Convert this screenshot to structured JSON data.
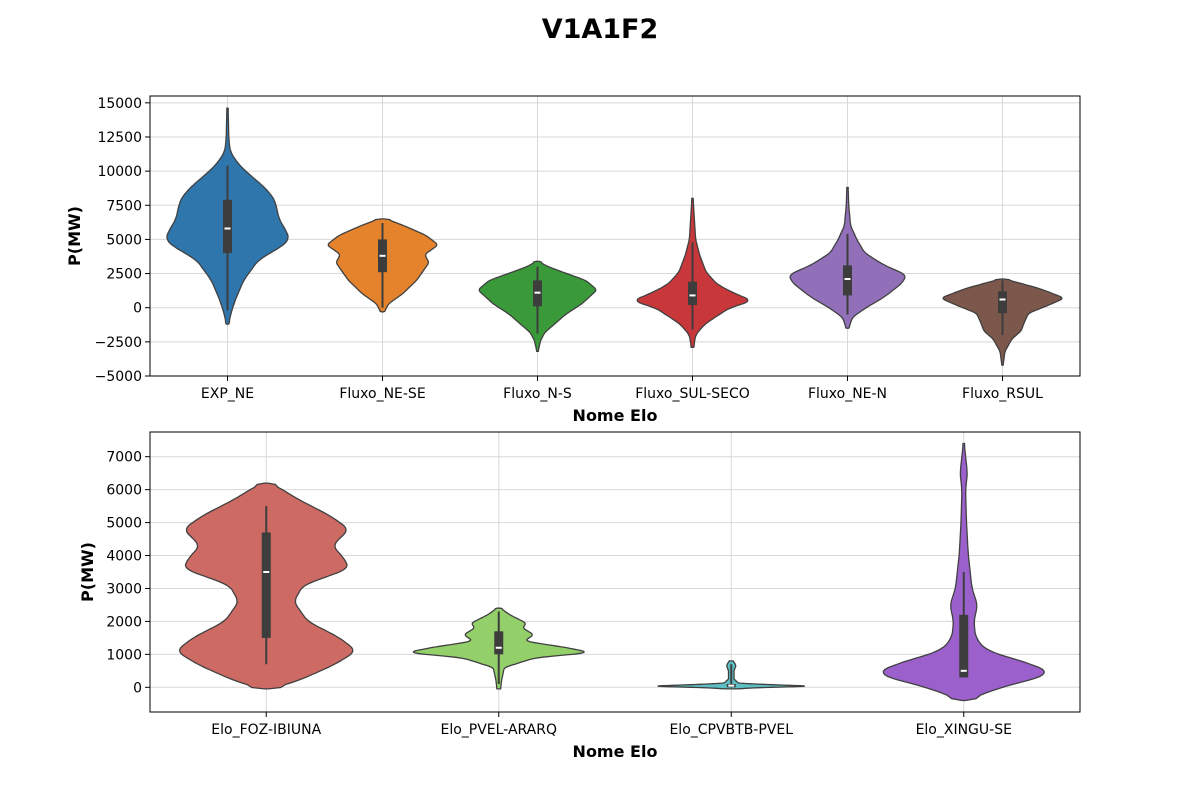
{
  "title": "V1A1F2",
  "chart_data": [
    {
      "type": "violin",
      "xlabel": "Nome Elo",
      "ylabel": "P(MW)",
      "ylim": [
        -5000,
        15500
      ],
      "yticks": [
        -5000,
        -2500,
        0,
        2500,
        5000,
        7500,
        10000,
        12500,
        15000
      ],
      "ytick_labels": [
        "−5000",
        "−2500",
        "0",
        "2500",
        "5000",
        "7500",
        "10000",
        "12500",
        "15000"
      ],
      "grid": true,
      "categories": [
        "EXP_NE",
        "Fluxo_NE-SE",
        "Fluxo_N-S",
        "Fluxo_SUL-SECO",
        "Fluxo_NE-N",
        "Fluxo_RSUL"
      ],
      "series": [
        {
          "color": "#2f76ad",
          "min": -1200,
          "max": 14600,
          "q1": 4000,
          "median": 5800,
          "q3": 7900,
          "whisker_low": -200,
          "whisker_high": 10400,
          "density": [
            [
              -1200,
              0.02
            ],
            [
              -500,
              0.05
            ],
            [
              500,
              0.12
            ],
            [
              2000,
              0.26
            ],
            [
              3500,
              0.5
            ],
            [
              4500,
              0.88
            ],
            [
              5000,
              1.0
            ],
            [
              5600,
              0.95
            ],
            [
              6500,
              0.83
            ],
            [
              7200,
              0.8
            ],
            [
              8000,
              0.75
            ],
            [
              8800,
              0.6
            ],
            [
              9500,
              0.42
            ],
            [
              10300,
              0.22
            ],
            [
              11000,
              0.1
            ],
            [
              11500,
              0.04
            ],
            [
              12500,
              0.02
            ],
            [
              14600,
              0.01
            ]
          ]
        },
        {
          "color": "#e5832d",
          "min": -300,
          "max": 6500,
          "q1": 2600,
          "median": 3800,
          "q3": 5000,
          "whisker_low": 0,
          "whisker_high": 6200,
          "density": [
            [
              -300,
              0.03
            ],
            [
              300,
              0.1
            ],
            [
              1000,
              0.32
            ],
            [
              2000,
              0.55
            ],
            [
              3300,
              0.75
            ],
            [
              3900,
              0.68
            ],
            [
              4600,
              0.9
            ],
            [
              5300,
              0.7
            ],
            [
              6000,
              0.35
            ],
            [
              6500,
              0.06
            ]
          ]
        },
        {
          "color": "#3a9a3a",
          "min": -3200,
          "max": 3400,
          "q1": 100,
          "median": 1100,
          "q3": 2000,
          "whisker_low": -1900,
          "whisker_high": 3000,
          "density": [
            [
              -3200,
              0.01
            ],
            [
              -2400,
              0.05
            ],
            [
              -1800,
              0.12
            ],
            [
              -1300,
              0.25
            ],
            [
              -500,
              0.45
            ],
            [
              300,
              0.72
            ],
            [
              1300,
              0.96
            ],
            [
              2000,
              0.78
            ],
            [
              2700,
              0.35
            ],
            [
              3100,
              0.12
            ],
            [
              3400,
              0.03
            ]
          ]
        },
        {
          "color": "#c8373a",
          "min": -2900,
          "max": 8000,
          "q1": 200,
          "median": 900,
          "q3": 1900,
          "whisker_low": -1600,
          "whisker_high": 4800,
          "density": [
            [
              -2900,
              0.02
            ],
            [
              -2000,
              0.05
            ],
            [
              -1200,
              0.2
            ],
            [
              0,
              0.6
            ],
            [
              500,
              0.98
            ],
            [
              1000,
              0.7
            ],
            [
              1700,
              0.4
            ],
            [
              2600,
              0.22
            ],
            [
              3800,
              0.12
            ],
            [
              5000,
              0.05
            ],
            [
              6500,
              0.03
            ],
            [
              8000,
              0.01
            ]
          ]
        },
        {
          "color": "#9270b9",
          "min": -1500,
          "max": 8800,
          "q1": 900,
          "median": 2100,
          "q3": 3100,
          "whisker_low": -500,
          "whisker_high": 5400,
          "density": [
            [
              -1500,
              0.02
            ],
            [
              -700,
              0.08
            ],
            [
              0,
              0.3
            ],
            [
              800,
              0.6
            ],
            [
              1800,
              0.88
            ],
            [
              2400,
              0.95
            ],
            [
              3100,
              0.6
            ],
            [
              4000,
              0.28
            ],
            [
              5000,
              0.15
            ],
            [
              6000,
              0.05
            ],
            [
              7500,
              0.02
            ],
            [
              8800,
              0.01
            ]
          ]
        },
        {
          "color": "#7c574b",
          "min": -4200,
          "max": 2100,
          "q1": -400,
          "median": 600,
          "q3": 1200,
          "whisker_low": -2000,
          "whisker_high": 2000,
          "density": [
            [
              -4200,
              0.01
            ],
            [
              -3200,
              0.04
            ],
            [
              -2300,
              0.15
            ],
            [
              -1700,
              0.3
            ],
            [
              -1100,
              0.35
            ],
            [
              -400,
              0.42
            ],
            [
              200,
              0.75
            ],
            [
              700,
              1.0
            ],
            [
              1400,
              0.6
            ],
            [
              1900,
              0.2
            ],
            [
              2100,
              0.03
            ]
          ]
        }
      ]
    },
    {
      "type": "violin",
      "xlabel": "Nome Elo",
      "ylabel": "P(MW)",
      "ylim": [
        -750,
        7750
      ],
      "yticks": [
        0,
        1000,
        2000,
        3000,
        4000,
        5000,
        6000,
        7000
      ],
      "ytick_labels": [
        "0",
        "1000",
        "2000",
        "3000",
        "4000",
        "5000",
        "6000",
        "7000"
      ],
      "grid": true,
      "categories": [
        "Elo_FOZ-IBIUNA",
        "Elo_PVEL-ARARQ",
        "Elo_CPVBTB-PVEL",
        "Elo_XINGU-SE"
      ],
      "series": [
        {
          "color": "#cd6a63",
          "min": -50,
          "max": 6200,
          "q1": 1500,
          "median": 3500,
          "q3": 4700,
          "whisker_low": 700,
          "whisker_high": 5500,
          "density": [
            [
              -50,
              0.05
            ],
            [
              200,
              0.35
            ],
            [
              700,
              0.75
            ],
            [
              1100,
              0.98
            ],
            [
              1500,
              0.8
            ],
            [
              2000,
              0.45
            ],
            [
              2600,
              0.3
            ],
            [
              3100,
              0.4
            ],
            [
              3600,
              0.9
            ],
            [
              3900,
              0.85
            ],
            [
              4300,
              0.72
            ],
            [
              4800,
              0.9
            ],
            [
              5200,
              0.7
            ],
            [
              5700,
              0.35
            ],
            [
              6100,
              0.12
            ],
            [
              6200,
              0.02
            ]
          ]
        },
        {
          "color": "#93d06a",
          "min": -50,
          "max": 2400,
          "q1": 1000,
          "median": 1200,
          "q3": 1700,
          "whisker_low": 100,
          "whisker_high": 2300,
          "density": [
            [
              -50,
              0.02
            ],
            [
              200,
              0.03
            ],
            [
              600,
              0.06
            ],
            [
              900,
              0.4
            ],
            [
              1050,
              1.0
            ],
            [
              1200,
              0.75
            ],
            [
              1400,
              0.28
            ],
            [
              1600,
              0.38
            ],
            [
              1800,
              0.26
            ],
            [
              1950,
              0.3
            ],
            [
              2200,
              0.12
            ],
            [
              2400,
              0.02
            ]
          ]
        },
        {
          "color": "#5dbfc4",
          "min": -50,
          "max": 800,
          "q1": 0,
          "median": 50,
          "q3": 100,
          "whisker_low": 0,
          "whisker_high": 700,
          "density": [
            [
              -50,
              0.02
            ],
            [
              0,
              0.4
            ],
            [
              30,
              0.95
            ],
            [
              60,
              0.6
            ],
            [
              120,
              0.08
            ],
            [
              250,
              0.03
            ],
            [
              500,
              0.03
            ],
            [
              650,
              0.05
            ],
            [
              720,
              0.04
            ],
            [
              800,
              0.02
            ]
          ]
        },
        {
          "color": "#9c60cd",
          "min": -400,
          "max": 7400,
          "q1": 300,
          "median": 500,
          "q3": 2200,
          "whisker_low": 300,
          "whisker_high": 3500,
          "density": [
            [
              -400,
              0.03
            ],
            [
              0,
              0.4
            ],
            [
              400,
              0.97
            ],
            [
              700,
              0.75
            ],
            [
              1100,
              0.25
            ],
            [
              1500,
              0.13
            ],
            [
              2000,
              0.11
            ],
            [
              2500,
              0.15
            ],
            [
              3000,
              0.09
            ],
            [
              4000,
              0.05
            ],
            [
              5000,
              0.03
            ],
            [
              6000,
              0.02
            ],
            [
              6500,
              0.04
            ],
            [
              7000,
              0.02
            ],
            [
              7400,
              0.005
            ]
          ]
        }
      ]
    }
  ]
}
